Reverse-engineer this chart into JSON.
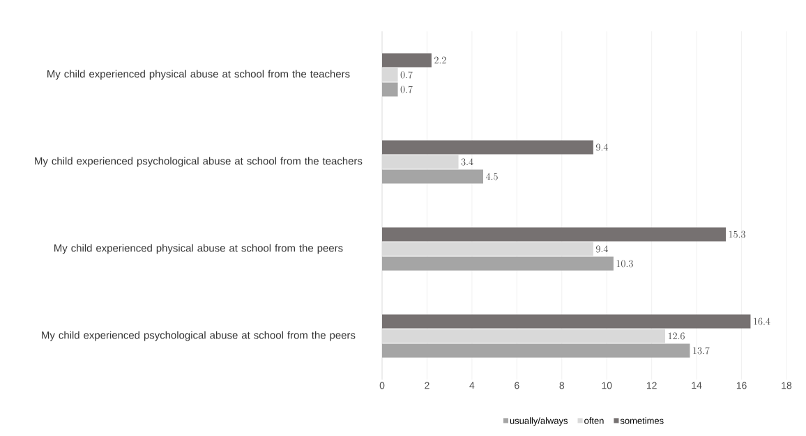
{
  "chart_data": {
    "type": "bar",
    "orientation": "horizontal",
    "categories": [
      "My child experienced physical abuse at school from the teachers",
      "My child experienced psychological abuse at school from the teachers",
      "My child experienced physical abuse at school from the peers",
      "My child experienced psychological abuse at school from the peers"
    ],
    "series": [
      {
        "name": "usually/always",
        "color": "#a5a5a5",
        "values": [
          0.7,
          4.5,
          10.3,
          13.7
        ]
      },
      {
        "name": "often",
        "color": "#d9d9d9",
        "values": [
          0.7,
          3.4,
          9.4,
          12.6
        ]
      },
      {
        "name": "sometimes",
        "color": "#767171",
        "values": [
          2.2,
          9.4,
          15.3,
          16.4
        ]
      }
    ],
    "xlim": [
      0,
      18
    ],
    "xticks": [
      0,
      2,
      4,
      6,
      8,
      10,
      12,
      14,
      16,
      18
    ],
    "grid": "x",
    "legend": "bottom",
    "data_labels": true
  }
}
